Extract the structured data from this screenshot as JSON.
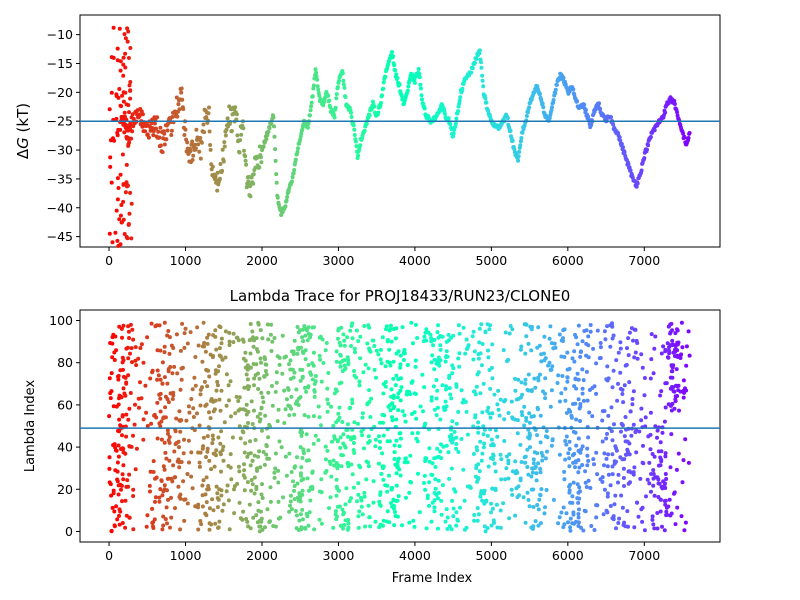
{
  "chart_data": [
    {
      "type": "scatter",
      "title": "",
      "xlabel": "",
      "ylabel_prefix": "Δ",
      "ylabel_var": "G",
      "ylabel_suffix": " (kT)",
      "xlim": [
        -380,
        7990
      ],
      "ylim": [
        -46.8,
        -6.6
      ],
      "xticks": [
        0,
        1000,
        2000,
        3000,
        4000,
        5000,
        6000,
        7000
      ],
      "yticks": [
        -45,
        -40,
        -35,
        -30,
        -25,
        -20,
        -15,
        -10
      ],
      "colormap": "rainbow (frame index → red to violet)",
      "reference_line": {
        "y": -25.0,
        "color": "#1f77b4"
      },
      "trace_keypoints": [
        [
          150,
          -22
        ],
        [
          200,
          -25
        ],
        [
          260,
          -28
        ],
        [
          330,
          -24
        ],
        [
          400,
          -23
        ],
        [
          500,
          -27
        ],
        [
          600,
          -25
        ],
        [
          700,
          -29
        ],
        [
          800,
          -26
        ],
        [
          900,
          -22
        ],
        [
          950,
          -20
        ],
        [
          1000,
          -28
        ],
        [
          1050,
          -31
        ],
        [
          1100,
          -30
        ],
        [
          1150,
          -27
        ],
        [
          1200,
          -30
        ],
        [
          1250,
          -25
        ],
        [
          1300,
          -23
        ],
        [
          1350,
          -34
        ],
        [
          1400,
          -36
        ],
        [
          1450,
          -35
        ],
        [
          1500,
          -30
        ],
        [
          1550,
          -24
        ],
        [
          1600,
          -25
        ],
        [
          1650,
          -23
        ],
        [
          1700,
          -29
        ],
        [
          1750,
          -26
        ],
        [
          1800,
          -35
        ],
        [
          1850,
          -37
        ],
        [
          1900,
          -33
        ],
        [
          2000,
          -30
        ],
        [
          2100,
          -26
        ],
        [
          2150,
          -24
        ],
        [
          2200,
          -38
        ],
        [
          2250,
          -41
        ],
        [
          2300,
          -40
        ],
        [
          2350,
          -37
        ],
        [
          2400,
          -35
        ],
        [
          2450,
          -31
        ],
        [
          2500,
          -28
        ],
        [
          2550,
          -25
        ],
        [
          2600,
          -26
        ],
        [
          2650,
          -22
        ],
        [
          2700,
          -16
        ],
        [
          2750,
          -21
        ],
        [
          2800,
          -22
        ],
        [
          2850,
          -20
        ],
        [
          2900,
          -23
        ],
        [
          2950,
          -24
        ],
        [
          3000,
          -18
        ],
        [
          3050,
          -16
        ],
        [
          3100,
          -22
        ],
        [
          3150,
          -23
        ],
        [
          3200,
          -26
        ],
        [
          3250,
          -31
        ],
        [
          3300,
          -28
        ],
        [
          3350,
          -26
        ],
        [
          3400,
          -24
        ],
        [
          3450,
          -22
        ],
        [
          3500,
          -24
        ],
        [
          3550,
          -22
        ],
        [
          3600,
          -18
        ],
        [
          3650,
          -15
        ],
        [
          3700,
          -13
        ],
        [
          3750,
          -17
        ],
        [
          3800,
          -19
        ],
        [
          3850,
          -22
        ],
        [
          3900,
          -20
        ],
        [
          3950,
          -17
        ],
        [
          4000,
          -18
        ],
        [
          4050,
          -16
        ],
        [
          4100,
          -22
        ],
        [
          4150,
          -24
        ],
        [
          4200,
          -25
        ],
        [
          4300,
          -24
        ],
        [
          4350,
          -22
        ],
        [
          4400,
          -24
        ],
        [
          4450,
          -25
        ],
        [
          4500,
          -28
        ],
        [
          4550,
          -24
        ],
        [
          4600,
          -20
        ],
        [
          4650,
          -18
        ],
        [
          4700,
          -17
        ],
        [
          4750,
          -16
        ],
        [
          4800,
          -14
        ],
        [
          4850,
          -13
        ],
        [
          4900,
          -20
        ],
        [
          4950,
          -23
        ],
        [
          5000,
          -25
        ],
        [
          5050,
          -26
        ],
        [
          5100,
          -26
        ],
        [
          5150,
          -25
        ],
        [
          5200,
          -24
        ],
        [
          5250,
          -27
        ],
        [
          5300,
          -30
        ],
        [
          5350,
          -32
        ],
        [
          5400,
          -27
        ],
        [
          5450,
          -25
        ],
        [
          5500,
          -22
        ],
        [
          5550,
          -20
        ],
        [
          5600,
          -19
        ],
        [
          5650,
          -21
        ],
        [
          5700,
          -24
        ],
        [
          5750,
          -25
        ],
        [
          5800,
          -22
        ],
        [
          5850,
          -19
        ],
        [
          5900,
          -17
        ],
        [
          5950,
          -18
        ],
        [
          6000,
          -20
        ],
        [
          6050,
          -19
        ],
        [
          6100,
          -21
        ],
        [
          6150,
          -23
        ],
        [
          6200,
          -22
        ],
        [
          6250,
          -24
        ],
        [
          6300,
          -26
        ],
        [
          6350,
          -23
        ],
        [
          6400,
          -22
        ],
        [
          6450,
          -24
        ],
        [
          6500,
          -25
        ],
        [
          6550,
          -24
        ],
        [
          6600,
          -26
        ],
        [
          6650,
          -27
        ],
        [
          6700,
          -29
        ],
        [
          6750,
          -31
        ],
        [
          6800,
          -33
        ],
        [
          6850,
          -35
        ],
        [
          6900,
          -36
        ],
        [
          6950,
          -34
        ],
        [
          7000,
          -31
        ],
        [
          7050,
          -29
        ],
        [
          7100,
          -27
        ],
        [
          7150,
          -26
        ],
        [
          7200,
          -25
        ],
        [
          7250,
          -24
        ],
        [
          7300,
          -22
        ],
        [
          7350,
          -21
        ],
        [
          7400,
          -22
        ],
        [
          7450,
          -25
        ],
        [
          7500,
          -27
        ],
        [
          7550,
          -29
        ],
        [
          7600,
          -27
        ]
      ],
      "early_scatter_x": [
        0,
        300
      ],
      "early_scatter_y": [
        -47,
        -8
      ]
    },
    {
      "type": "scatter",
      "title": "Lambda Trace for PROJ18433/RUN23/CLONE0",
      "xlabel": "Frame Index",
      "ylabel": "Lambda Index",
      "xlim": [
        -380,
        7990
      ],
      "ylim": [
        -5,
        105
      ],
      "xticks": [
        0,
        1000,
        2000,
        3000,
        4000,
        5000,
        6000,
        7000
      ],
      "yticks": [
        0,
        20,
        40,
        60,
        80,
        100
      ],
      "colormap": "rainbow (frame index → red to violet)",
      "reference_line": {
        "y": 49,
        "color": "#1f77b4"
      },
      "frame_range": [
        0,
        7600
      ],
      "lambda_range": [
        0,
        99
      ]
    }
  ]
}
